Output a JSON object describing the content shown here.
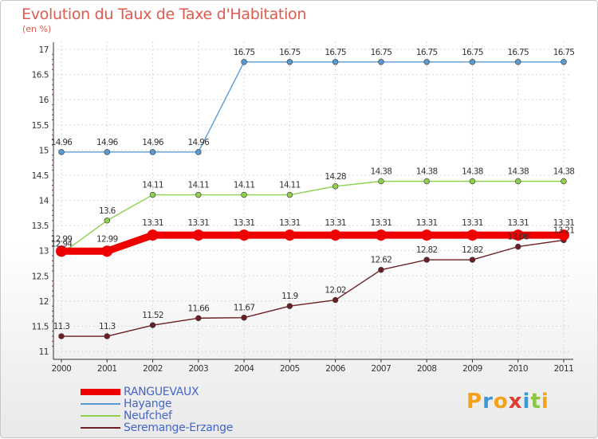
{
  "header": {
    "title": "Evolution du Taux de Taxe d'Habitation",
    "subtitle": "(en %)"
  },
  "logo": {
    "letters": [
      "P",
      "r",
      "o",
      "x",
      "i",
      "t",
      "i"
    ],
    "colors": [
      "#f4a21b",
      "#3a9ad9",
      "#f4a21b",
      "#e23c31",
      "#3a9ad9",
      "#8bc541",
      "#f4a21b"
    ]
  },
  "chart_data": {
    "type": "line",
    "x": [
      2000,
      2001,
      2002,
      2003,
      2004,
      2005,
      2006,
      2007,
      2008,
      2009,
      2010,
      2011
    ],
    "ylim": [
      11,
      17
    ],
    "yticks": [
      "11",
      "11.5",
      "12",
      "12.5",
      "13",
      "13.5",
      "14",
      "14.5",
      "15",
      "15.5",
      "16",
      "16.5",
      "17"
    ],
    "xticks": [
      "2000",
      "2001",
      "2002",
      "2003",
      "2004",
      "2005",
      "2006",
      "2007",
      "2008",
      "2009",
      "2010",
      "2011"
    ],
    "grid": true,
    "legend_position": "bottom-left",
    "series": [
      {
        "name": "Seremange-Erzange",
        "color": "#6b1f24",
        "values": [
          11.3,
          11.3,
          11.52,
          11.66,
          11.67,
          11.9,
          12.02,
          12.62,
          12.82,
          12.82,
          13.08,
          13.21
        ],
        "labels": [
          "11.3",
          "11.3",
          "11.52",
          "11.66",
          "11.67",
          "11.9",
          "12.02",
          "12.62",
          "12.82",
          "12.82",
          "13.08",
          "13.21"
        ]
      },
      {
        "name": "Neufchef",
        "color": "#8fd14f",
        "values": [
          12.94,
          13.6,
          14.11,
          14.11,
          14.11,
          14.11,
          14.28,
          14.38,
          14.38,
          14.38,
          14.38,
          14.38
        ],
        "labels": [
          "12.94",
          "13.6",
          "14.11",
          "14.11",
          "14.11",
          "14.11",
          "14.28",
          "14.38",
          "14.38",
          "14.38",
          "14.38",
          "14.38"
        ]
      },
      {
        "name": "Hayange",
        "color": "#5b9bd5",
        "values": [
          14.96,
          14.96,
          14.96,
          14.96,
          16.75,
          16.75,
          16.75,
          16.75,
          16.75,
          16.75,
          16.75,
          16.75
        ],
        "labels": [
          "14.96",
          "14.96",
          "14.96",
          "14.96",
          "16.75",
          "16.75",
          "16.75",
          "16.75",
          "16.75",
          "16.75",
          "16.75",
          "16.75"
        ]
      },
      {
        "name": "RANGUEVAUX",
        "color": "#ee0000",
        "values": [
          12.99,
          12.99,
          13.31,
          13.31,
          13.31,
          13.31,
          13.31,
          13.31,
          13.31,
          13.31,
          13.31,
          13.31
        ],
        "labels": [
          "12.99",
          "12.99",
          "13.31",
          "13.31",
          "13.31",
          "13.31",
          "13.31",
          "13.31",
          "13.31",
          "13.31",
          "13.31",
          "13.31"
        ]
      }
    ],
    "legend": [
      "RANGUEVAUX",
      "Hayange",
      "Neufchef",
      "Seremange-Erzange"
    ]
  }
}
